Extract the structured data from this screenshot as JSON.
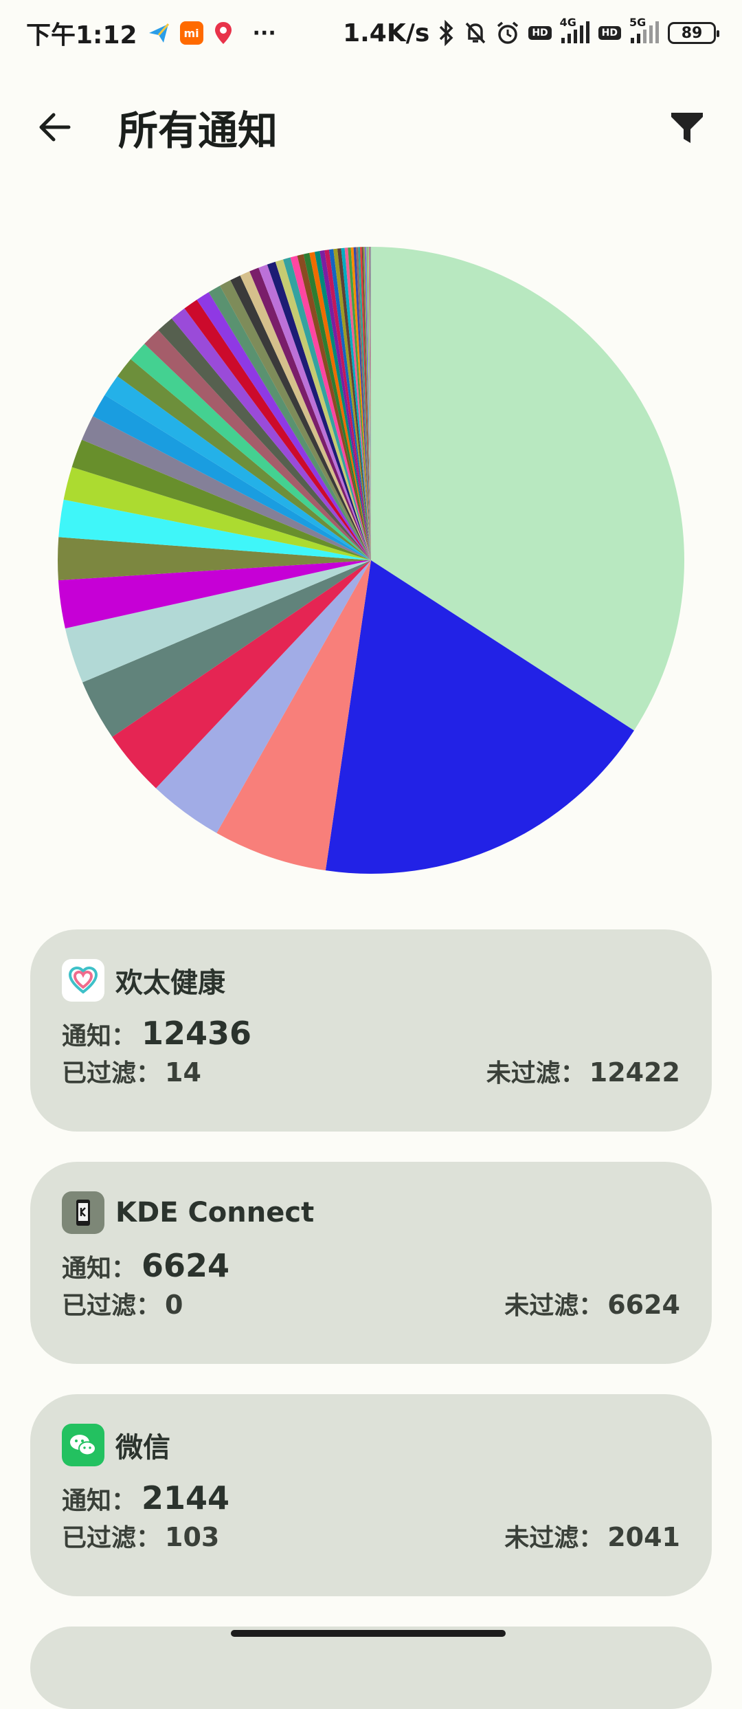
{
  "status_bar": {
    "time": "下午1:12",
    "network_speed": "1.4K/s",
    "battery": "89",
    "more": "···",
    "mi_label": "mi",
    "hd_label": "HD",
    "net_4g": "4G",
    "net_5g": "5G"
  },
  "app_bar": {
    "title": "所有通知"
  },
  "chart_data": {
    "type": "pie",
    "values": [
      12436,
      6624,
      2144,
      1400,
      1250,
      1150,
      1050,
      900,
      800,
      700,
      620,
      540,
      480,
      450,
      420,
      400,
      380,
      360,
      330,
      300,
      280,
      260,
      240,
      220,
      200,
      190,
      180,
      170,
      160,
      150,
      140,
      130,
      120,
      110,
      100,
      95,
      90,
      85,
      80,
      75,
      70,
      65,
      60,
      55,
      50,
      45,
      40,
      36,
      32,
      28,
      24,
      20,
      18,
      16,
      14,
      12,
      10,
      8,
      6,
      5,
      4,
      3,
      2,
      1
    ],
    "colors": [
      "#b8e8c0",
      "#2222e6",
      "#f87f7a",
      "#a1ace6",
      "#e52553",
      "#61837b",
      "#b2d9d6",
      "#c600d6",
      "#7c8740",
      "#3ff6f9",
      "#acdb30",
      "#688f2c",
      "#848098",
      "#1a9de0",
      "#24b1e8",
      "#6d8f3b",
      "#44d191",
      "#a55d6a",
      "#56604f",
      "#9a4bd9",
      "#cc0a2c",
      "#8f39e4",
      "#5a9270",
      "#7e8c5a",
      "#3a3a3a",
      "#d5c08c",
      "#7a1e6a",
      "#bc71d8",
      "#1c1c74",
      "#c6cb72",
      "#34a2a0",
      "#ff46a2",
      "#8a4b21",
      "#2e7d32",
      "#ef6c00",
      "#00897b",
      "#7b1fa2",
      "#c2185b",
      "#1565c0",
      "#9e9d24",
      "#5d4037",
      "#00acc1",
      "#f06292",
      "#43a047",
      "#fb8c00",
      "#3949ab",
      "#8d6e63",
      "#26a69a",
      "#e53935",
      "#6d4c41",
      "#7cb342",
      "#ab47bc",
      "#29b6f6",
      "#ffa726",
      "#26c6da",
      "#d4e157",
      "#ec407a",
      "#5c6bc0",
      "#66bb6a",
      "#ff7043",
      "#8e24aa",
      "#00bcd4",
      "#9ccc65",
      "#424242"
    ]
  },
  "cards": [
    {
      "name": "欢太健康",
      "notify_label": "通知：",
      "notify": "12436",
      "filtered_label": "已过滤：",
      "filtered": "14",
      "unfiltered_label": "未过滤：",
      "unfiltered": "12422"
    },
    {
      "name": "KDE Connect",
      "notify_label": "通知：",
      "notify": "6624",
      "filtered_label": "已过滤：",
      "filtered": "0",
      "unfiltered_label": "未过滤：",
      "unfiltered": "6624"
    },
    {
      "name": "微信",
      "notify_label": "通知：",
      "notify": "2144",
      "filtered_label": "已过滤：",
      "filtered": "103",
      "unfiltered_label": "未过滤：",
      "unfiltered": "2041"
    }
  ],
  "icons": {
    "back": "arrow-back-icon",
    "filter": "filter-funnel-icon",
    "health": "heart-app-icon",
    "kde": "kde-connect-app-icon",
    "wechat": "wechat-app-icon"
  }
}
